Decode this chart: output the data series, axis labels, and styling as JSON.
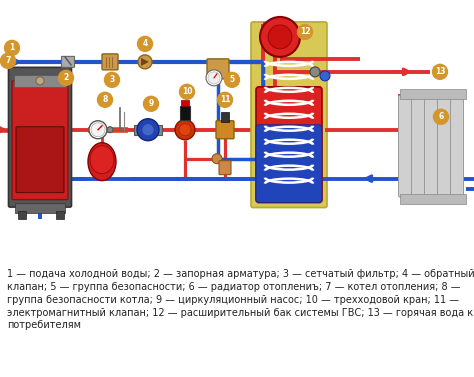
{
  "background_color": "#ffffff",
  "figure_width": 4.74,
  "figure_height": 3.77,
  "dpi": 100,
  "caption_text": "1 — подача холодной воды; 2 — запорная арматура; 3 — сетчатый фильтр; 4 — обратный\nклапан; 5 — группа безопасности; 6 — радиатор отоплениъ; 7 — котел отопления; 8 —\nгруппа безопасности котла; 9 — циркуляционный насос; 10 — трехходовой кран; 11 —\nэлектромагнитный клапан; 12 — расширительный бак системы ГВС; 13 — горячая вода к\nпотребителям",
  "caption_fontsize": 7.0,
  "red_color": "#e03030",
  "blue_color": "#2255cc",
  "number_bg": "#d4952a",
  "yellow_bg": "#d4c060",
  "white": "#ffffff",
  "black": "#000000"
}
